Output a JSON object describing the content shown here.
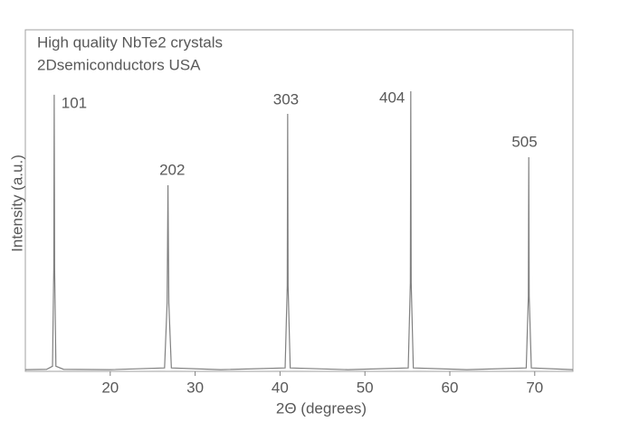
{
  "chart_data": {
    "type": "line",
    "title": "High quality NbTe2 crystals",
    "subtitle": "2Dsemiconductors USA",
    "x_label": "2Θ (degrees)",
    "y_label": "Intensity (a.u.)",
    "x": [
      10,
      12.5,
      13.2,
      13.35,
      13.4,
      13.45,
      13.6,
      14.5,
      20,
      26.4,
      26.7,
      26.8,
      26.9,
      27.2,
      33,
      40.6,
      40.85,
      40.9,
      40.95,
      41.2,
      48,
      55.1,
      55.35,
      55.4,
      55.45,
      55.7,
      62,
      69.0,
      69.25,
      69.3,
      69.35,
      69.6,
      74.5
    ],
    "values": [
      0.5,
      0.6,
      1.5,
      30,
      81,
      30,
      1.5,
      0.6,
      0.5,
      1,
      20,
      54.5,
      20,
      1,
      0.5,
      1,
      25,
      75.4,
      25,
      1,
      0.5,
      1,
      26,
      82,
      26,
      1,
      0.5,
      1,
      22,
      62.7,
      22,
      1,
      0.5
    ],
    "color": "#808080",
    "xlim": [
      10,
      74.5
    ],
    "ylim": [
      0,
      100
    ],
    "xticks": [
      20,
      30,
      40,
      50,
      60,
      70
    ],
    "annotations": [
      {
        "text": "101",
        "x": 15.75,
        "y": 78.3
      },
      {
        "text": "202",
        "x": 27.3,
        "y": 58.7
      },
      {
        "text": "303",
        "x": 40.7,
        "y": 79.4
      },
      {
        "text": "404",
        "x": 53.2,
        "y": 79.9
      },
      {
        "text": "505",
        "x": 68.8,
        "y": 66.9
      }
    ]
  }
}
